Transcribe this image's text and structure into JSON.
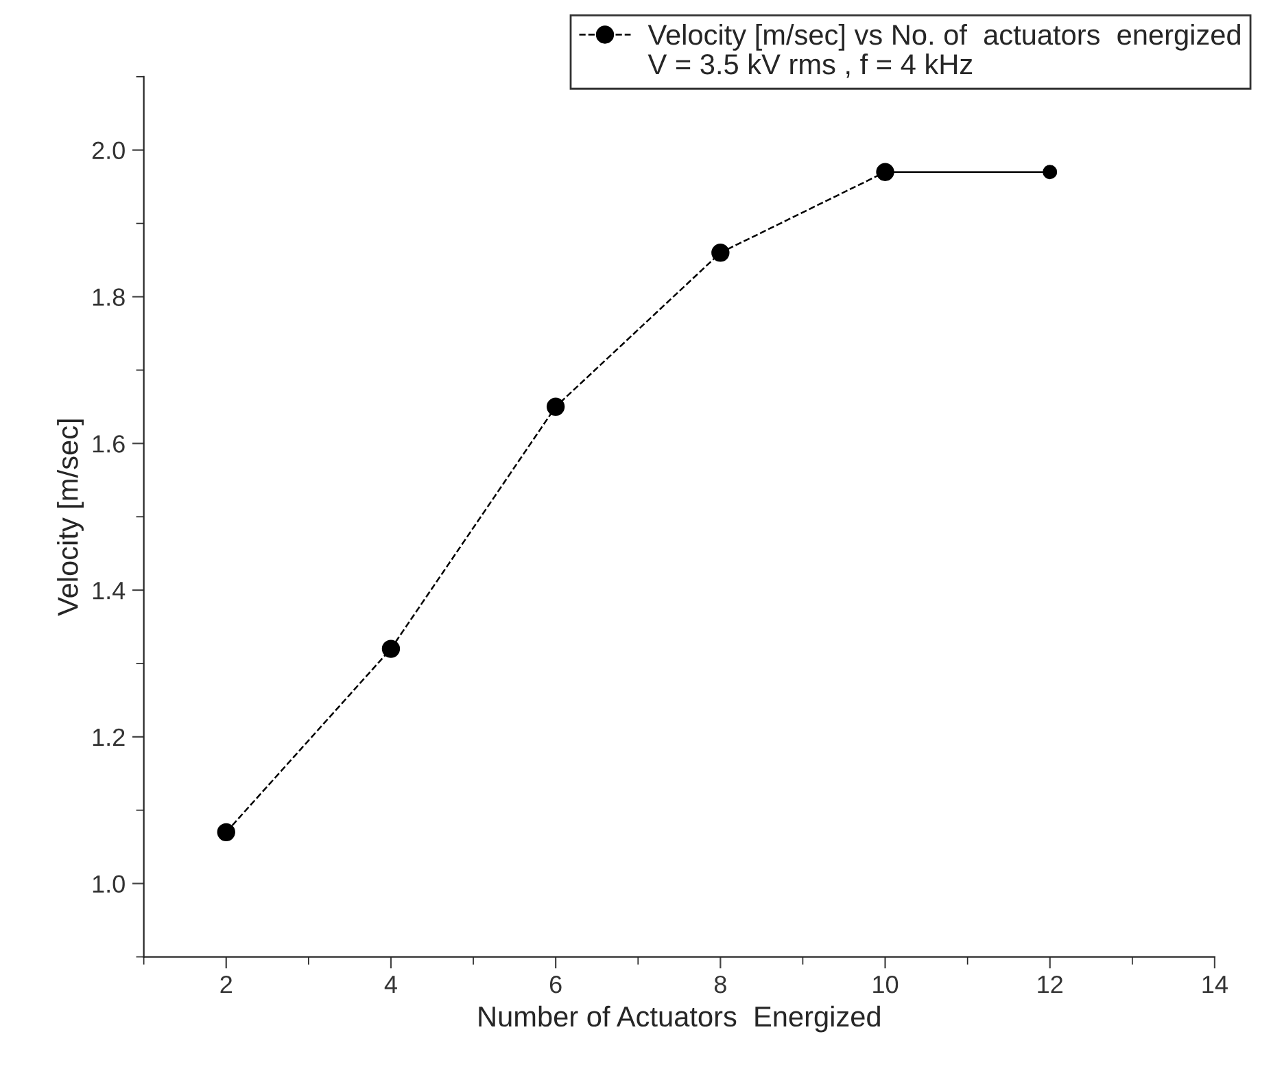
{
  "chart_data": {
    "type": "line",
    "xlabel": "Number of Actuators  Energized",
    "ylabel": "Velocity [m/sec]",
    "series": [
      {
        "name": "Velocity [m/sec] vs No. of  actuators  energized",
        "color": "#000000",
        "x": [
          2,
          4,
          6,
          8,
          10
        ],
        "values": [
          1.07,
          1.32,
          1.65,
          1.86,
          1.97
        ],
        "line_style": "dashed"
      },
      {
        "color": "#000000",
        "x": [
          10,
          12
        ],
        "values": [
          1.97,
          1.97
        ],
        "line_style": "solid"
      }
    ],
    "annotations": [
      "V = 3.5 kV rms , f = 4 kHz"
    ],
    "xlim": [
      1,
      14
    ],
    "xticks": [
      2,
      4,
      6,
      8,
      10,
      12,
      14
    ],
    "ylim": [
      0.9,
      2.1
    ],
    "yticks": [
      {
        "value": 1.0,
        "label": "1.0"
      },
      1.2,
      1.4,
      1.6,
      1.8,
      {
        "value": 2.0,
        "label": "2.0"
      }
    ],
    "marker": "circle",
    "grid": false,
    "legend": "top"
  }
}
